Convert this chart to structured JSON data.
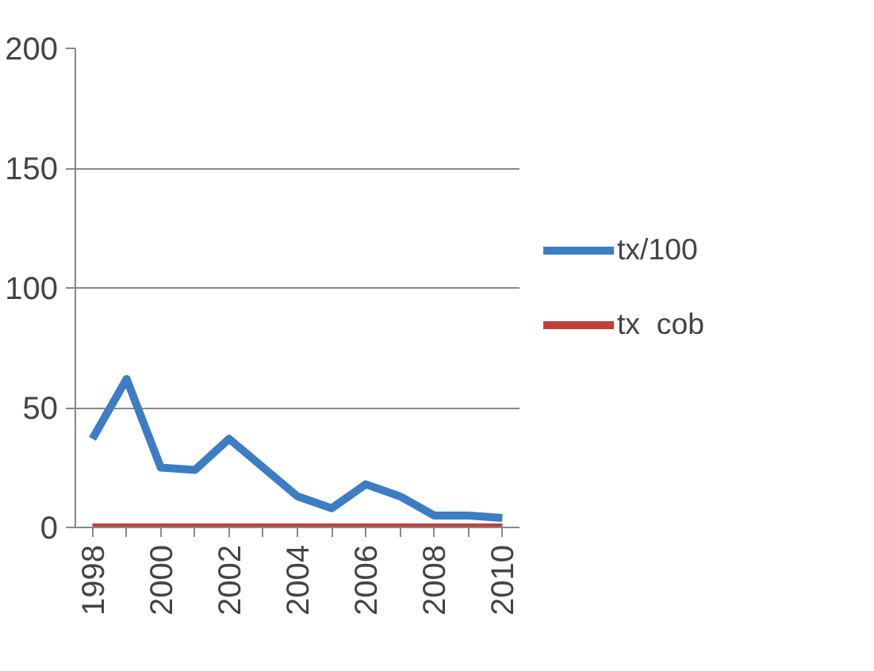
{
  "chart_data": {
    "type": "line",
    "categories": [
      "1998",
      null,
      "2000",
      null,
      "2002",
      null,
      "2004",
      null,
      "2006",
      null,
      "2008",
      null,
      "2010"
    ],
    "series": [
      {
        "name": "tx/100",
        "color": "#3c7dc4",
        "values": [
          37,
          62,
          25,
          24,
          37,
          25,
          13,
          8,
          18,
          13,
          5,
          5,
          4
        ]
      },
      {
        "name": "tx  cob",
        "color": "#c0403c",
        "values": [
          0,
          0,
          0,
          0,
          0,
          0,
          0,
          0,
          0,
          0,
          0,
          0,
          0
        ]
      }
    ],
    "ylim": [
      0,
      200
    ],
    "yticks": [
      0,
      50,
      100,
      150,
      200
    ],
    "grid": "y",
    "legend": "right",
    "marker": "none",
    "line_style": "solid"
  }
}
